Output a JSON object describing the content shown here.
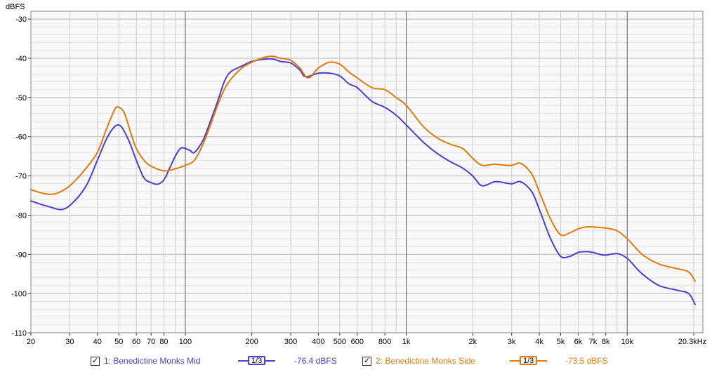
{
  "chart_data": {
    "type": "line",
    "ylabel": "dBFS",
    "ylim": [
      -110,
      -28
    ],
    "yticks": [
      -30,
      -40,
      -50,
      -60,
      -70,
      -80,
      -90,
      -100,
      -110
    ],
    "xscale": "log",
    "xlim": [
      20,
      22000
    ],
    "xticks": [
      {
        "value": 20,
        "label": "20"
      },
      {
        "value": 30,
        "label": "30"
      },
      {
        "value": 40,
        "label": "40"
      },
      {
        "value": 50,
        "label": "50"
      },
      {
        "value": 60,
        "label": "60"
      },
      {
        "value": 70,
        "label": "70"
      },
      {
        "value": 80,
        "label": "80"
      },
      {
        "value": 100,
        "label": "100"
      },
      {
        "value": 200,
        "label": "200"
      },
      {
        "value": 300,
        "label": "300"
      },
      {
        "value": 400,
        "label": "400"
      },
      {
        "value": 500,
        "label": "500"
      },
      {
        "value": 600,
        "label": "600"
      },
      {
        "value": 800,
        "label": "800"
      },
      {
        "value": 1000,
        "label": "1k"
      },
      {
        "value": 2000,
        "label": "2k"
      },
      {
        "value": 3000,
        "label": "3k"
      },
      {
        "value": 4000,
        "label": "4k"
      },
      {
        "value": 5000,
        "label": "5k"
      },
      {
        "value": 6000,
        "label": "6k"
      },
      {
        "value": 7000,
        "label": "7k"
      },
      {
        "value": 8000,
        "label": "8k"
      },
      {
        "value": 10000,
        "label": "10k"
      },
      {
        "value": 20000,
        "label": "20.3kHz"
      }
    ],
    "grid": true,
    "series": [
      {
        "name": "1: Benedictine Monks Mid",
        "color": "#4a3fc8",
        "points": [
          [
            20,
            -76.4
          ],
          [
            24,
            -77.8
          ],
          [
            28,
            -78.5
          ],
          [
            32,
            -76
          ],
          [
            36,
            -72
          ],
          [
            40,
            -66
          ],
          [
            45,
            -59.5
          ],
          [
            50,
            -57
          ],
          [
            55,
            -60.5
          ],
          [
            60,
            -66
          ],
          [
            65,
            -70.5
          ],
          [
            70,
            -71.7
          ],
          [
            75,
            -72.1
          ],
          [
            80,
            -71
          ],
          [
            85,
            -68
          ],
          [
            90,
            -65
          ],
          [
            95,
            -63
          ],
          [
            100,
            -63
          ],
          [
            105,
            -63.5
          ],
          [
            110,
            -64
          ],
          [
            120,
            -61
          ],
          [
            130,
            -56
          ],
          [
            140,
            -51
          ],
          [
            150,
            -46
          ],
          [
            160,
            -43.5
          ],
          [
            180,
            -42
          ],
          [
            200,
            -40.8
          ],
          [
            230,
            -40.2
          ],
          [
            250,
            -40.2
          ],
          [
            270,
            -40.8
          ],
          [
            300,
            -41.2
          ],
          [
            330,
            -43
          ],
          [
            350,
            -44.7
          ],
          [
            400,
            -43.8
          ],
          [
            450,
            -43.8
          ],
          [
            500,
            -44.5
          ],
          [
            550,
            -46.5
          ],
          [
            600,
            -47.5
          ],
          [
            700,
            -51
          ],
          [
            800,
            -52.5
          ],
          [
            900,
            -54.5
          ],
          [
            1000,
            -57
          ],
          [
            1200,
            -61.5
          ],
          [
            1400,
            -64.5
          ],
          [
            1600,
            -66.5
          ],
          [
            1800,
            -68
          ],
          [
            2000,
            -70
          ],
          [
            2200,
            -72.5
          ],
          [
            2500,
            -71.5
          ],
          [
            2700,
            -71.6
          ],
          [
            3000,
            -72
          ],
          [
            3300,
            -71.5
          ],
          [
            3700,
            -74
          ],
          [
            4000,
            -78.5
          ],
          [
            4500,
            -86
          ],
          [
            5000,
            -90.5
          ],
          [
            5500,
            -90.5
          ],
          [
            6000,
            -89.5
          ],
          [
            6500,
            -89.3
          ],
          [
            7000,
            -89.5
          ],
          [
            7500,
            -90
          ],
          [
            8000,
            -90.2
          ],
          [
            9000,
            -89.8
          ],
          [
            10000,
            -91
          ],
          [
            11000,
            -93.5
          ],
          [
            12000,
            -95.5
          ],
          [
            14000,
            -98
          ],
          [
            17000,
            -99.2
          ],
          [
            19000,
            -100
          ],
          [
            20300,
            -102.8
          ]
        ]
      },
      {
        "name": "2: Benedictine Monks Side",
        "color": "#e07a0f",
        "points": [
          [
            20,
            -73.5
          ],
          [
            23,
            -74.5
          ],
          [
            26,
            -74.5
          ],
          [
            30,
            -72.5
          ],
          [
            35,
            -68.5
          ],
          [
            40,
            -64
          ],
          [
            44,
            -58
          ],
          [
            48,
            -53
          ],
          [
            50,
            -52.5
          ],
          [
            53,
            -54
          ],
          [
            57,
            -59.5
          ],
          [
            60,
            -63
          ],
          [
            65,
            -66
          ],
          [
            70,
            -67.5
          ],
          [
            80,
            -68.7
          ],
          [
            90,
            -68.2
          ],
          [
            100,
            -67.3
          ],
          [
            110,
            -66
          ],
          [
            120,
            -62
          ],
          [
            130,
            -57
          ],
          [
            140,
            -52
          ],
          [
            150,
            -48
          ],
          [
            160,
            -45.5
          ],
          [
            180,
            -42.5
          ],
          [
            200,
            -41
          ],
          [
            230,
            -39.7
          ],
          [
            250,
            -39.5
          ],
          [
            270,
            -40
          ],
          [
            300,
            -40.5
          ],
          [
            330,
            -42.5
          ],
          [
            360,
            -45
          ],
          [
            400,
            -42.5
          ],
          [
            450,
            -41
          ],
          [
            500,
            -41.5
          ],
          [
            550,
            -43.5
          ],
          [
            600,
            -45
          ],
          [
            700,
            -47.5
          ],
          [
            800,
            -48
          ],
          [
            900,
            -50
          ],
          [
            1000,
            -52
          ],
          [
            1200,
            -57.5
          ],
          [
            1400,
            -60.5
          ],
          [
            1600,
            -62
          ],
          [
            1800,
            -63
          ],
          [
            2000,
            -65.5
          ],
          [
            2200,
            -67.3
          ],
          [
            2500,
            -67
          ],
          [
            2700,
            -67.2
          ],
          [
            3000,
            -67.3
          ],
          [
            3300,
            -66.8
          ],
          [
            3700,
            -69.5
          ],
          [
            4000,
            -74
          ],
          [
            4500,
            -81
          ],
          [
            5000,
            -85
          ],
          [
            5500,
            -84.5
          ],
          [
            6000,
            -83.5
          ],
          [
            6500,
            -83
          ],
          [
            7000,
            -83
          ],
          [
            8000,
            -83.3
          ],
          [
            9000,
            -84
          ],
          [
            10000,
            -86
          ],
          [
            11000,
            -88.5
          ],
          [
            12000,
            -90.5
          ],
          [
            14000,
            -92.5
          ],
          [
            17000,
            -93.7
          ],
          [
            19000,
            -94.5
          ],
          [
            20300,
            -96.8
          ]
        ]
      }
    ],
    "legend": {
      "placement": "bottom",
      "items": [
        {
          "checked": true,
          "name": "1: Benedictine Monks Mid",
          "smoothing": "1/3",
          "level": "-76.4 dBFS",
          "color": "#4a3fc8"
        },
        {
          "checked": true,
          "name": "2: Benedictine Monks Side",
          "smoothing": "1/3",
          "level": "-73.5 dBFS",
          "color": "#e07a0f"
        }
      ]
    }
  },
  "colors": {
    "plot_background": "#f8f8f8",
    "grid_minor": "#cccccc",
    "grid_major": "#555555",
    "frame": "#888888"
  }
}
